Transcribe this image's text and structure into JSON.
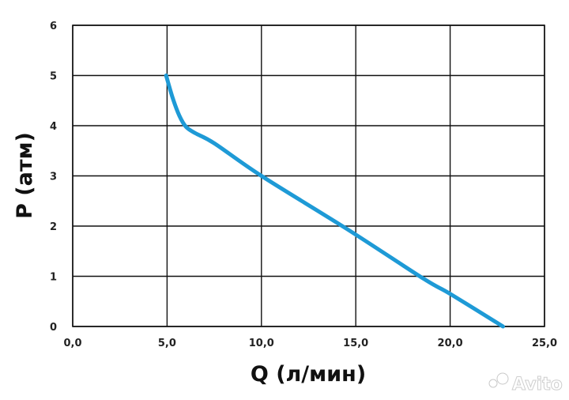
{
  "chart_data": {
    "type": "line",
    "xlabel": "Q (л/мин)",
    "ylabel": "P (атм)",
    "xlim": [
      0,
      25
    ],
    "ylim": [
      0,
      6
    ],
    "x_ticks": [
      "0,0",
      "5,0",
      "10,0",
      "15,0",
      "20,0",
      "25,0"
    ],
    "y_ticks": [
      "0",
      "1",
      "2",
      "3",
      "4",
      "5",
      "6"
    ],
    "grid": true,
    "series": [
      {
        "color": "#1e9ad6",
        "x": [
          4.95,
          5.3,
          5.65,
          6.0,
          6.5,
          7.5,
          10.0,
          14.5,
          18.6,
          20.0,
          22.8
        ],
        "y": [
          5.0,
          4.55,
          4.2,
          3.98,
          3.85,
          3.65,
          3.0,
          1.95,
          0.95,
          0.65,
          0.0
        ]
      }
    ]
  },
  "watermark": {
    "text": "Avito"
  }
}
